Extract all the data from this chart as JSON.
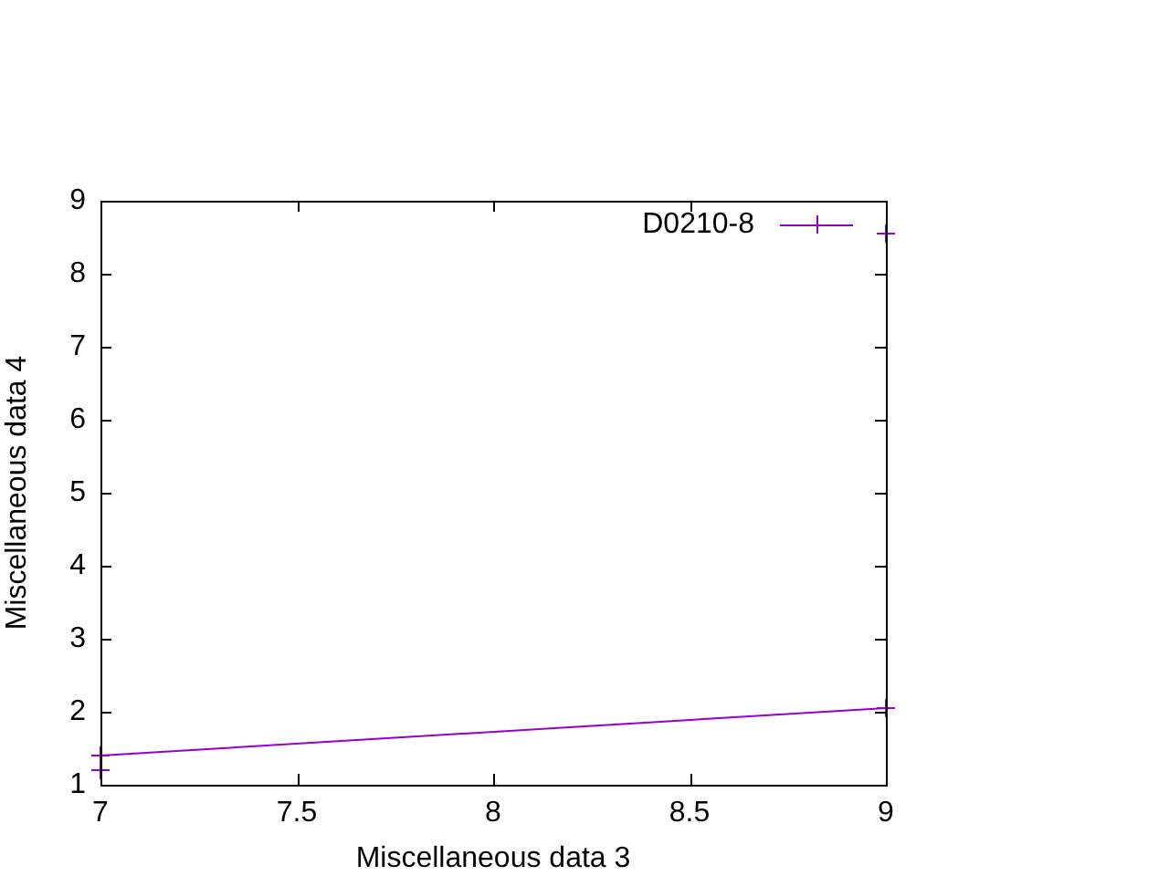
{
  "chart_data": {
    "type": "line",
    "xlabel": "Miscellaneous data 3",
    "ylabel": "Miscellaneous data 4",
    "xlim": [
      7,
      9
    ],
    "xticks": [
      7,
      7.5,
      8,
      8.5,
      9
    ],
    "ylim": [
      1,
      9
    ],
    "yticks": [
      1,
      2,
      3,
      4,
      5,
      6,
      7,
      8,
      9
    ],
    "grid": false,
    "legend": "top right",
    "marker": "cross",
    "line_style": "solid",
    "x": [
      7,
      9
    ],
    "series": [
      {
        "name": "D0210-8",
        "color": "#9400d3",
        "values": [
          1.4,
          2.05
        ]
      },
      {
        "type": "scatter",
        "color": "#9400d3",
        "values": [
          1.2,
          8.55
        ]
      }
    ]
  }
}
